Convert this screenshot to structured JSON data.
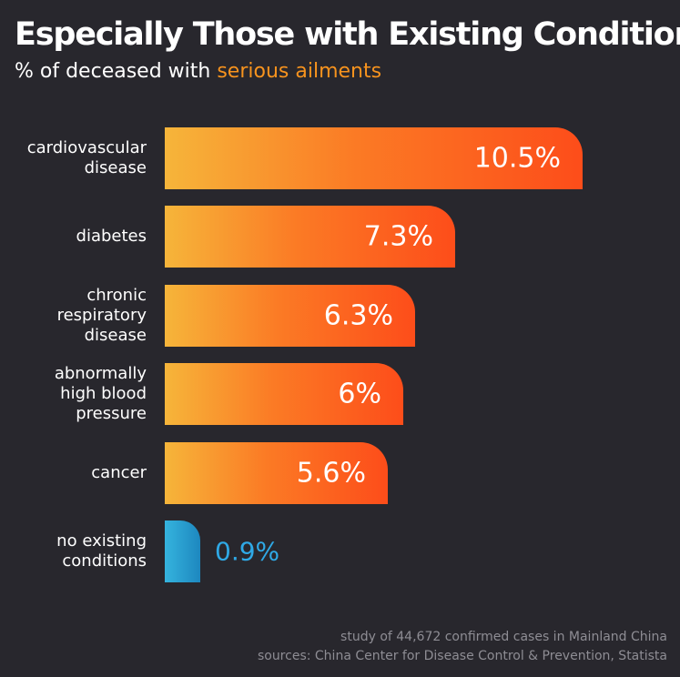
{
  "header": {
    "title": "Especially Those with Existing Conditions",
    "subtitle_prefix": "% of deceased with ",
    "subtitle_highlight": "serious ailments"
  },
  "colors": {
    "background": "#28272d",
    "bar_gradient_start": "#f6b53a",
    "bar_gradient_end": "#fd4d1a",
    "highlight_bar_start": "#35b4de",
    "highlight_bar_end": "#1d87bf",
    "accent_text": "#f7931e",
    "highlight_value_text": "#2fa9e6"
  },
  "chart_data": {
    "type": "bar",
    "orientation": "horizontal",
    "title": "Especially Those with Existing Conditions",
    "subtitle": "% of deceased with serious ailments",
    "categories": [
      "cardiovascular\ndisease",
      "diabetes",
      "chronic\nrespiratory\ndisease",
      "abnormally\nhigh blood\npressure",
      "cancer",
      "no existing\nconditions"
    ],
    "values": [
      10.5,
      7.3,
      6.3,
      6,
      5.6,
      0.9
    ],
    "value_labels": [
      "10.5%",
      "7.3%",
      "6.3%",
      "6%",
      "5.6%",
      "0.9%"
    ],
    "unit": "%",
    "xlim": [
      0,
      10.5
    ],
    "grid": false,
    "legend": "none"
  },
  "footer": {
    "note": "study of 44,672 confirmed cases in Mainland China",
    "sources": "sources: China Center for Disease Control & Prevention, Statista"
  }
}
